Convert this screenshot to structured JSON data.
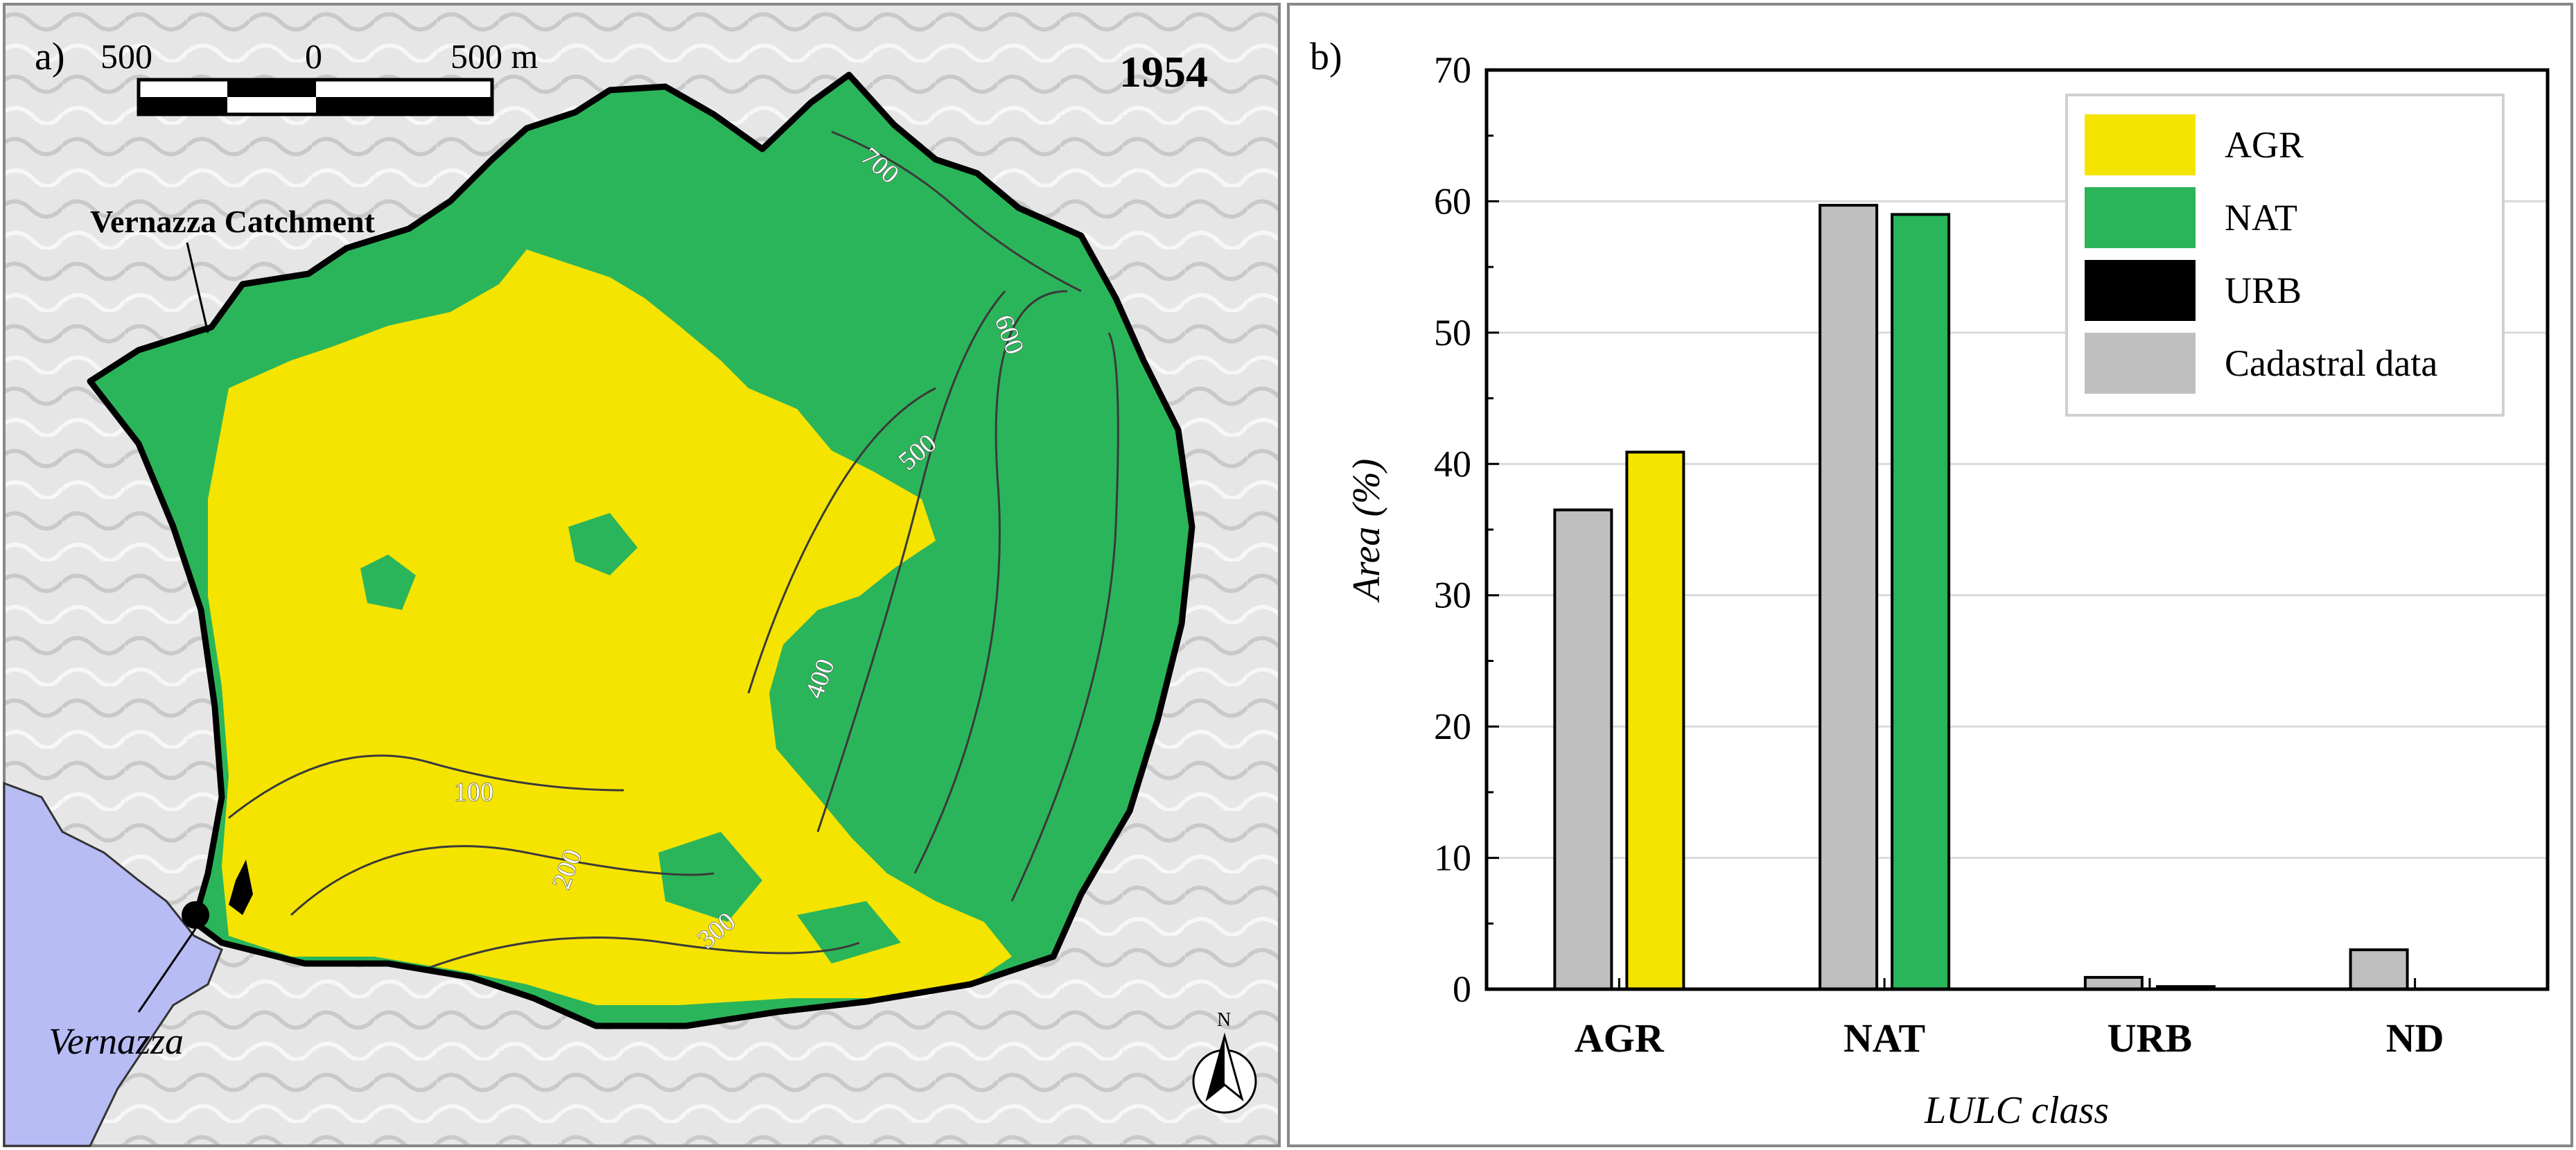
{
  "colors": {
    "agr": "#f5e400",
    "nat": "#2bb55a",
    "urb": "#000000",
    "cadastral": "#bfbfbf",
    "sea": "#b8bcf5",
    "hillshade": "#dcdcdc",
    "contour": "#3a3a3a"
  },
  "panel_a": {
    "label": "a)",
    "year": "1954",
    "catchment_label": "Vernazza Catchment",
    "town_label": "Vernazza",
    "north_label": "N",
    "scalebar": {
      "left": "500",
      "mid": "0",
      "right": "500 m"
    },
    "contours": [
      {
        "label": "100"
      },
      {
        "label": "200"
      },
      {
        "label": "300"
      },
      {
        "label": "400"
      },
      {
        "label": "500"
      },
      {
        "label": "600"
      },
      {
        "label": "700"
      }
    ]
  },
  "panel_b": {
    "label": "b)"
  },
  "chart_data": {
    "type": "bar",
    "xlabel": "LULC class",
    "ylabel": "Area (%)",
    "ylim": [
      0,
      70
    ],
    "yticks": [
      "0",
      "10",
      "20",
      "30",
      "40",
      "50",
      "60",
      "70"
    ],
    "grid": true,
    "legend_position": "top-right",
    "legend": [
      {
        "name": "AGR",
        "color": "#f5e400"
      },
      {
        "name": "NAT",
        "color": "#2bb55a"
      },
      {
        "name": "URB",
        "color": "#000000"
      },
      {
        "name": "Cadastral data",
        "color": "#bfbfbf"
      }
    ],
    "categories": [
      "AGR",
      "NAT",
      "URB",
      "ND"
    ],
    "cadastral": [
      36.5,
      59.7,
      0.9,
      3.0
    ],
    "map_1954": [
      {
        "value": 40.9,
        "color": "#f5e400"
      },
      {
        "value": 59.0,
        "color": "#2bb55a"
      },
      {
        "value": 0.2,
        "color": "#000000"
      },
      {
        "value": 0,
        "color": "#ffffff"
      }
    ]
  }
}
